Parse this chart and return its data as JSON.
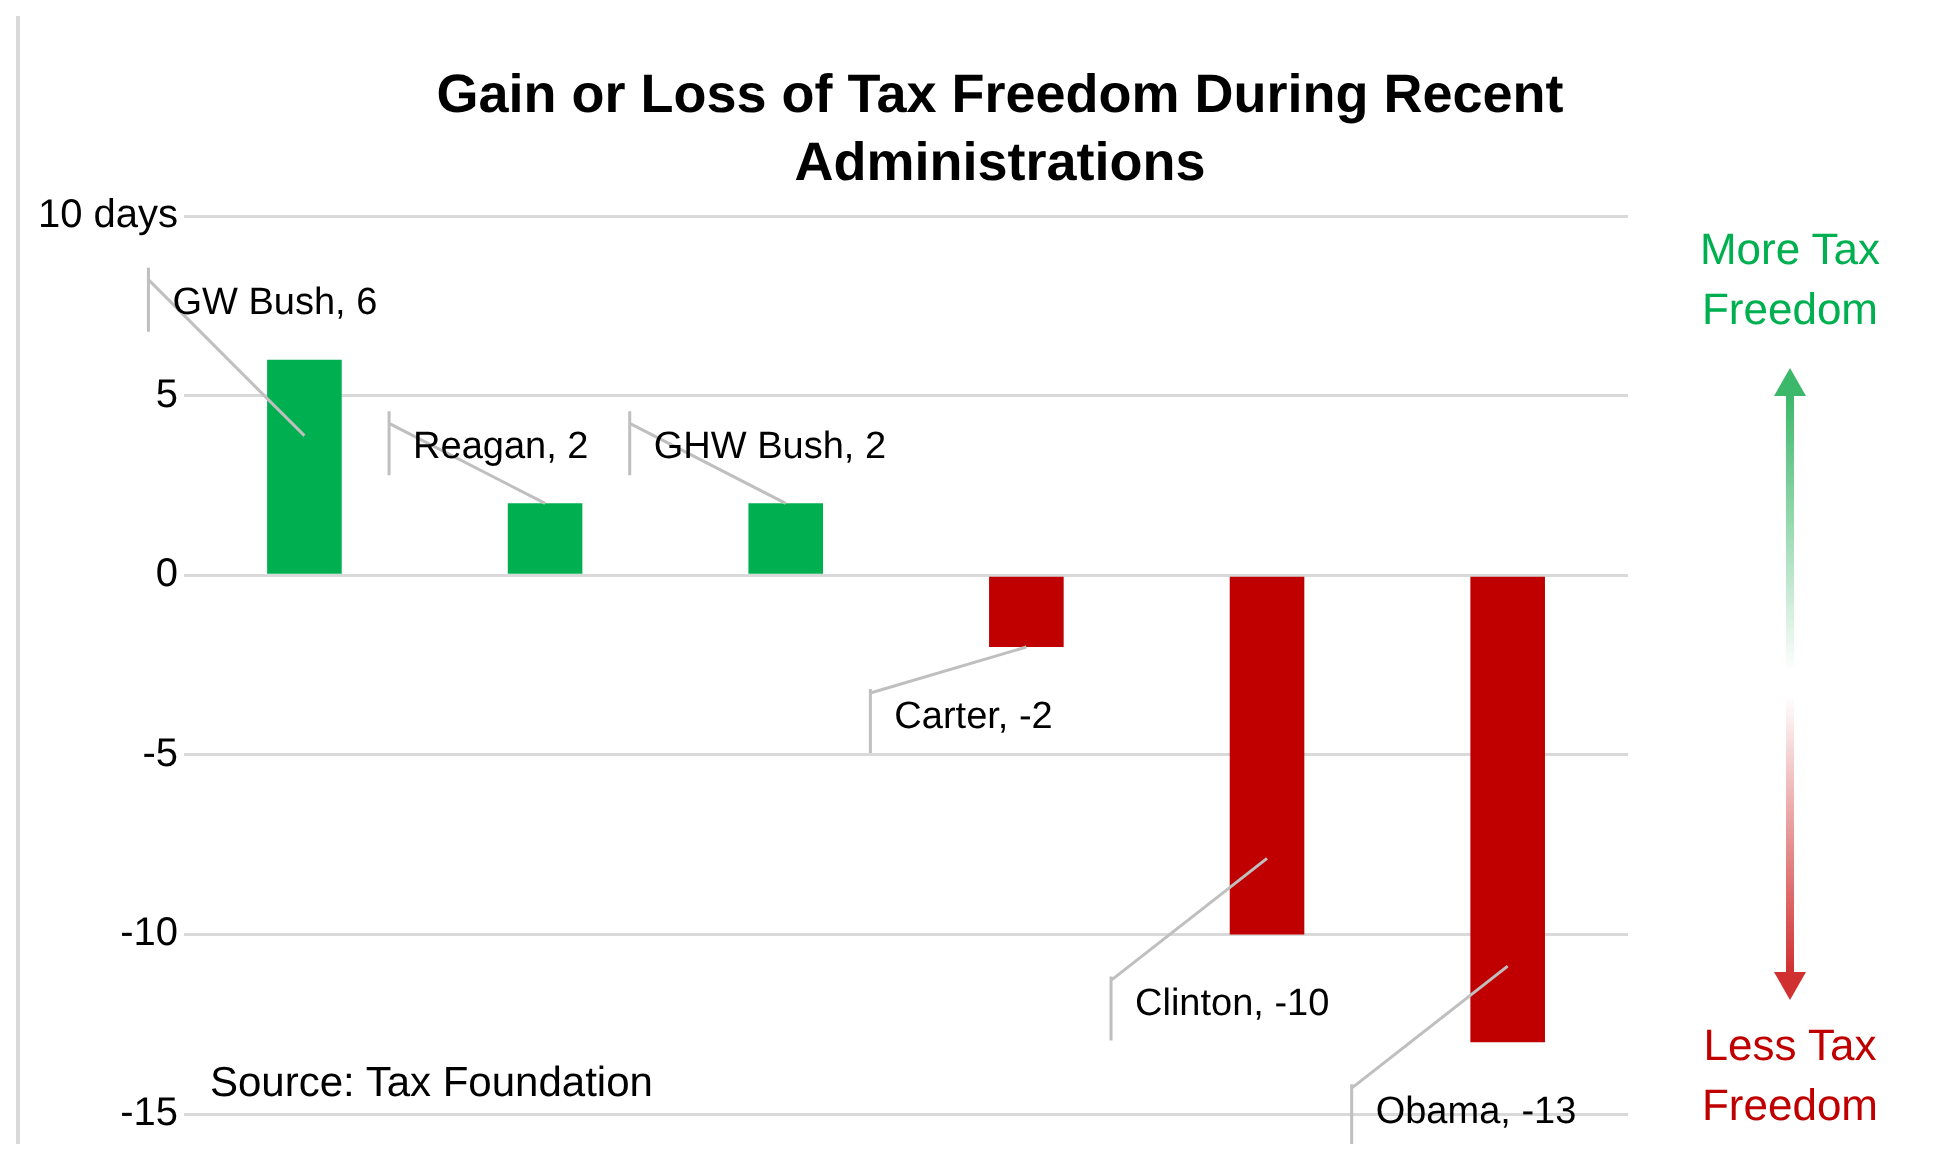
{
  "chart_data": {
    "type": "bar",
    "title": "Gain or Loss of Tax Freedom During Recent Administrations",
    "categories": [
      null,
      null,
      null,
      null,
      null,
      null
    ],
    "value_labels": [
      "GW Bush, 6",
      "Reagan, 2",
      "GHW Bush, 2",
      "Carter, -2",
      "Clinton, -10",
      "Obama, -13"
    ],
    "values": [
      6,
      2,
      2,
      -2,
      -10,
      -13
    ],
    "colors": [
      "#00b050",
      "#00b050",
      "#00b050",
      "#c00000",
      "#c00000",
      "#c00000"
    ],
    "ylim": [
      -15,
      10
    ],
    "yticks": [
      -15,
      -10,
      -5,
      0,
      5,
      {
        "value": 10,
        "label": "10 days"
      }
    ],
    "grid": "y",
    "tick_labels": "y",
    "annotations": [
      "Source: Tax Foundation",
      "More Tax Freedom",
      "Less Tax Freedom"
    ]
  }
}
